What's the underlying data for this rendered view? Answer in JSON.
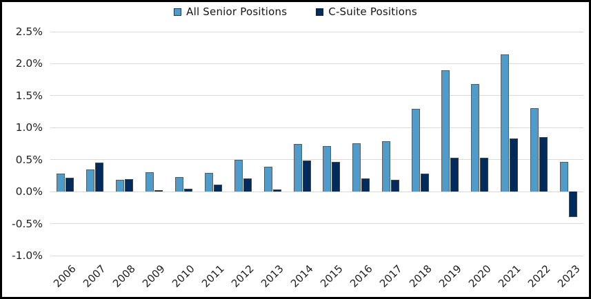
{
  "chart_data": {
    "type": "bar",
    "title": "",
    "categories": [
      "2006",
      "2007",
      "2008",
      "2009",
      "2010",
      "2011",
      "2012",
      "2013",
      "2014",
      "2015",
      "2016",
      "2017",
      "2018",
      "2019",
      "2020",
      "2021",
      "2022",
      "2023"
    ],
    "series": [
      {
        "name": "All Senior Positions",
        "color": "#4F9BC9",
        "border_color": "#595959",
        "values": [
          0.28,
          0.35,
          0.19,
          0.3,
          0.23,
          0.29,
          0.5,
          0.39,
          0.74,
          0.71,
          0.76,
          0.79,
          1.29,
          1.9,
          1.68,
          2.14,
          1.3,
          0.47
        ]
      },
      {
        "name": "C-Suite Positions",
        "color": "#002B5C",
        "border_color": "#454545",
        "values": [
          0.22,
          0.45,
          0.2,
          0.02,
          0.04,
          0.11,
          0.21,
          0.03,
          0.49,
          0.47,
          0.21,
          0.19,
          0.28,
          0.53,
          0.53,
          0.83,
          0.85,
          -0.4
        ]
      }
    ],
    "y_axis": {
      "min": -1.0,
      "max": 2.5,
      "step": 0.5,
      "tick_values": [
        2.5,
        2.0,
        1.5,
        1.0,
        0.5,
        0.0,
        -0.5,
        -1.0
      ],
      "tick_labels": [
        "2.5%",
        "2.0%",
        "1.5%",
        "1.0%",
        "0.5%",
        "0.0%",
        "-0.5%",
        "-1.0%"
      ],
      "grid": true
    },
    "xlabel": "",
    "ylabel": "",
    "legend_position": "top",
    "value_unit": "percent"
  },
  "colors": {
    "background": "#FFFFFF",
    "frame_border": "#000000",
    "gridline": "#D9D9D9",
    "text": "#1F1F1F"
  }
}
